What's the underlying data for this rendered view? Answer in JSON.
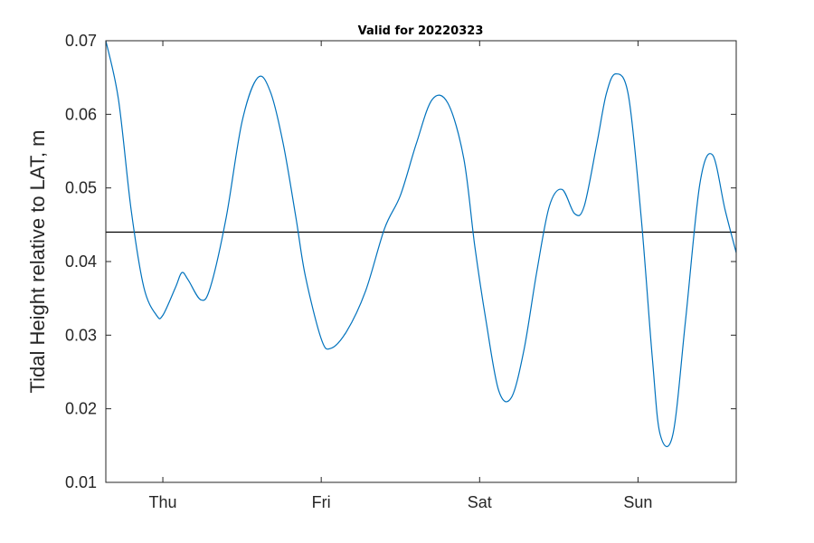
{
  "chart_data": {
    "type": "line",
    "title": "Valid for 20220323",
    "xlabel": "",
    "ylabel": "Tidal Height relative to LAT, m",
    "x_unit": "days from 2022-03-23 00:00",
    "xlim": [
      0.64,
      4.62
    ],
    "ylim": [
      0.01,
      0.07
    ],
    "xticks": [
      {
        "value": 1,
        "label": "Thu"
      },
      {
        "value": 2,
        "label": "Fri"
      },
      {
        "value": 3,
        "label": "Sat"
      },
      {
        "value": 4,
        "label": "Sun"
      }
    ],
    "yticks": [
      {
        "value": 0.01,
        "label": "0.01"
      },
      {
        "value": 0.02,
        "label": "0.02"
      },
      {
        "value": 0.03,
        "label": "0.03"
      },
      {
        "value": 0.04,
        "label": "0.04"
      },
      {
        "value": 0.05,
        "label": "0.05"
      },
      {
        "value": 0.06,
        "label": "0.06"
      },
      {
        "value": 0.07,
        "label": "0.07"
      }
    ],
    "grid": false,
    "reference_line": {
      "y": 0.044,
      "color": "#000000"
    },
    "series": [
      {
        "name": "",
        "color": "#0072BD",
        "x": [
          0.64,
          0.72,
          0.8,
          0.88,
          0.96,
          1.0,
          1.08,
          1.12,
          1.16,
          1.24,
          1.3,
          1.4,
          1.5,
          1.6,
          1.68,
          1.76,
          1.84,
          1.9,
          2.0,
          2.06,
          2.16,
          2.28,
          2.4,
          2.5,
          2.6,
          2.7,
          2.8,
          2.9,
          2.97,
          3.04,
          3.12,
          3.2,
          3.28,
          3.36,
          3.44,
          3.52,
          3.6,
          3.66,
          3.74,
          3.8,
          3.86,
          3.94,
          4.02,
          4.09,
          4.14,
          4.22,
          4.3,
          4.39,
          4.47,
          4.55,
          4.62
        ],
        "y": [
          0.07,
          0.062,
          0.047,
          0.0365,
          0.0327,
          0.0327,
          0.0365,
          0.0385,
          0.0375,
          0.0348,
          0.0365,
          0.046,
          0.059,
          0.065,
          0.063,
          0.056,
          0.046,
          0.038,
          0.0295,
          0.0282,
          0.0305,
          0.036,
          0.0445,
          0.049,
          0.056,
          0.062,
          0.0615,
          0.054,
          0.042,
          0.032,
          0.0225,
          0.0215,
          0.028,
          0.0385,
          0.0475,
          0.0498,
          0.0465,
          0.0475,
          0.056,
          0.0628,
          0.0655,
          0.0625,
          0.046,
          0.027,
          0.0165,
          0.0165,
          0.032,
          0.0505,
          0.0545,
          0.047,
          0.0412
        ]
      }
    ]
  }
}
